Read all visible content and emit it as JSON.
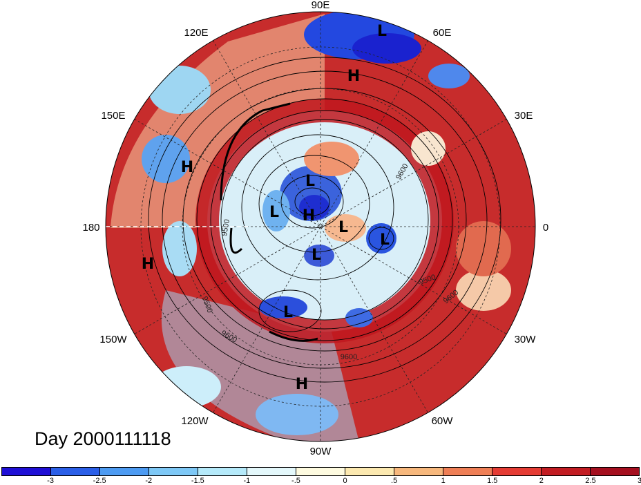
{
  "title": "Day 2000111118",
  "longitude_labels": [
    {
      "id": "90E",
      "text": "90E"
    },
    {
      "id": "60E",
      "text": "60E"
    },
    {
      "id": "30E",
      "text": "30E"
    },
    {
      "id": "0",
      "text": "0"
    },
    {
      "id": "30W",
      "text": "30W"
    },
    {
      "id": "60W",
      "text": "60W"
    },
    {
      "id": "90W",
      "text": "90W"
    },
    {
      "id": "120W",
      "text": "120W"
    },
    {
      "id": "150W",
      "text": "150W"
    },
    {
      "id": "180",
      "text": "180"
    },
    {
      "id": "150E",
      "text": "150E"
    },
    {
      "id": "120E",
      "text": "120E"
    }
  ],
  "pressure_centers": [
    "L",
    "H",
    "H",
    "H",
    "L",
    "H",
    "L",
    "L",
    "L",
    "L",
    "H",
    "L"
  ],
  "contour_labels": [
    "9500",
    "9500",
    "9500",
    "9600",
    "9600",
    "9600",
    "9600"
  ],
  "colorbar": {
    "colors": [
      "#1f0fd6",
      "#2b5fe8",
      "#4d9bf2",
      "#7ec8f6",
      "#b5eafa",
      "#e4f8fb",
      "#fefbe0",
      "#fce9b0",
      "#f7b87d",
      "#ef7f56",
      "#e53c34",
      "#c21c22",
      "#a50f1f"
    ],
    "ticks": [
      "-3",
      "-2.5",
      "-2",
      "-1.5",
      "-1",
      "-.5",
      "0",
      ".5",
      "1",
      "1.5",
      "2",
      "2.5",
      "3"
    ]
  }
}
